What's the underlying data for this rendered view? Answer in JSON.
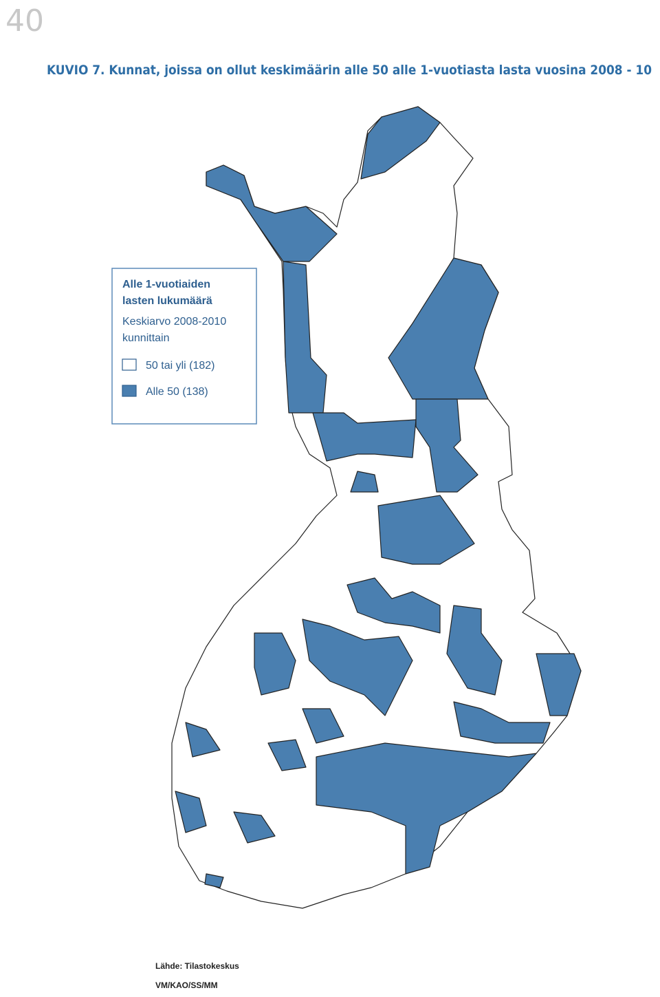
{
  "page_number": "40",
  "title": "KUVIO 7. Kunnat, joissa on ollut keskimäärin alle 50 alle 1-vuotiasta lasta vuosina 2008 - 10",
  "legend": {
    "title_lines": [
      "Alle 1-vuotiaiden",
      "lasten lukumäärä"
    ],
    "subtitle_lines": [
      "Keskiarvo 2008-2010",
      "kunnittain"
    ],
    "items": [
      {
        "label": "50 tai yli (182)",
        "color": "#ffffff"
      },
      {
        "label": "Alle 50 (138)",
        "color": "#4a7fb0"
      }
    ]
  },
  "source": [
    "Lähde: Tilastokeskus",
    "VM/KAO/SS/MM"
  ]
}
